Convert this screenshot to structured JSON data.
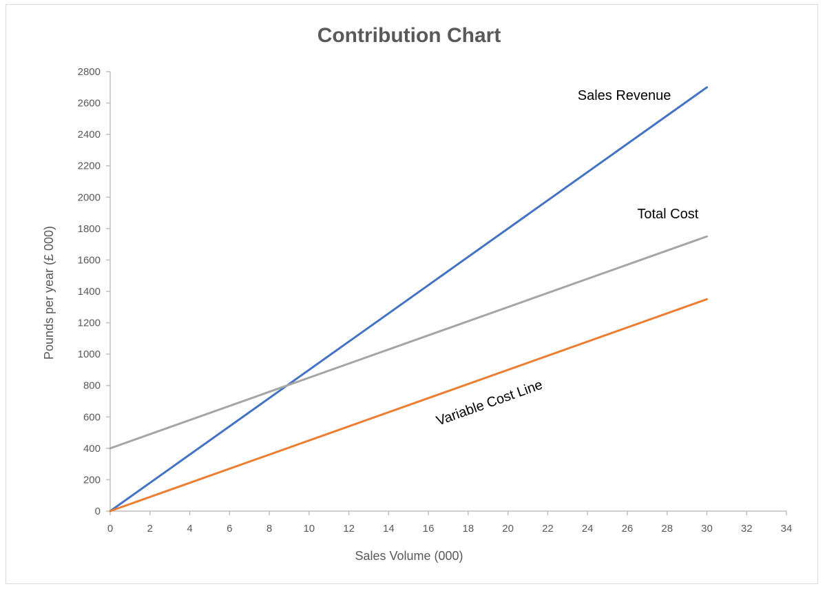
{
  "chart_data": {
    "type": "line",
    "title": "Contribution Chart",
    "xlabel": "Sales Volume (000)",
    "ylabel": "Pounds per year (£ 000)",
    "xlim": [
      0,
      34
    ],
    "ylim": [
      0,
      2800
    ],
    "xticks": [
      0,
      2,
      4,
      6,
      8,
      10,
      12,
      14,
      16,
      18,
      20,
      22,
      24,
      26,
      28,
      30,
      32,
      34
    ],
    "yticks": [
      0,
      200,
      400,
      600,
      800,
      1000,
      1200,
      1400,
      1600,
      1800,
      2000,
      2200,
      2400,
      2600,
      2800
    ],
    "grid": false,
    "series": [
      {
        "name": "Sales Revenue",
        "color": "#4472c4",
        "x": [
          0,
          30
        ],
        "y": [
          0,
          2700
        ]
      },
      {
        "name": "Total Cost",
        "color": "#a5a5a5",
        "x": [
          0,
          30
        ],
        "y": [
          400,
          1750
        ]
      },
      {
        "name": "Variable Cost Line",
        "color": "#ed7d31",
        "x": [
          0,
          30
        ],
        "y": [
          0,
          1350
        ]
      }
    ],
    "annotations": [
      {
        "text": "Sales Revenue",
        "series": 0
      },
      {
        "text": "Total Cost",
        "series": 1
      },
      {
        "text": "Variable Cost Line",
        "series": 2
      }
    ]
  }
}
